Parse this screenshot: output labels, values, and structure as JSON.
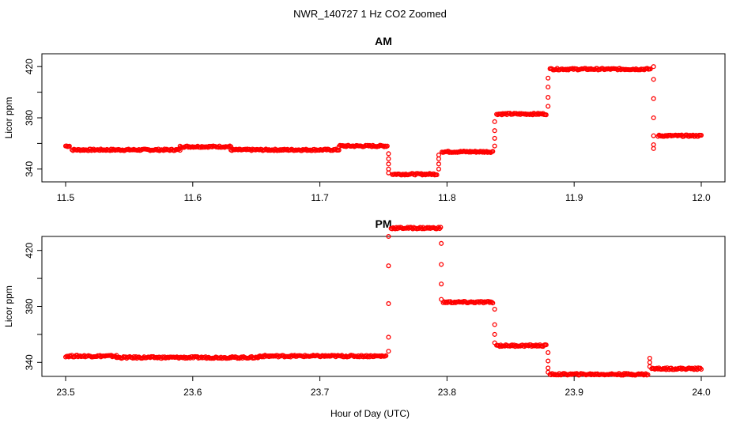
{
  "figure": {
    "title": "NWR_140727  1 Hz CO2 Zoomed",
    "xlabel": "Hour of Day (UTC)"
  },
  "chart_data": [
    {
      "type": "scatter",
      "title": "AM",
      "ylabel": "Licor ppm",
      "xlim": [
        11.5,
        12.0
      ],
      "ylim": [
        330,
        430
      ],
      "x_ticks": [
        "11.5",
        "11.6",
        "11.7",
        "11.8",
        "11.9",
        "12.0"
      ],
      "y_ticks": [
        "340",
        "380",
        "420"
      ],
      "marker_color": "#ff0000",
      "series": [
        {
          "segments": [
            {
              "x": [
                11.5,
                11.503
              ],
              "y": [
                358,
                358
              ]
            },
            {
              "x": [
                11.505,
                11.59
              ],
              "y": [
                355,
                355
              ]
            },
            {
              "x": [
                11.59,
                11.63
              ],
              "y": [
                357.5,
                357.5
              ]
            },
            {
              "x": [
                11.63,
                11.715
              ],
              "y": [
                355,
                355
              ]
            },
            {
              "x": [
                11.715,
                11.753
              ],
              "y": [
                358,
                358
              ]
            },
            {
              "x": [
                11.757,
                11.792
              ],
              "y": [
                336,
                336
              ]
            },
            {
              "x": [
                11.796,
                11.836
              ],
              "y": [
                353.5,
                353.5
              ]
            },
            {
              "x": [
                11.839,
                11.878
              ],
              "y": [
                383,
                383
              ]
            },
            {
              "x": [
                11.881,
                11.96
              ],
              "y": [
                418,
                418
              ]
            },
            {
              "x": [
                11.966,
                12.0
              ],
              "y": [
                366,
                366
              ]
            }
          ],
          "transitions": [
            {
              "x": 11.754,
              "y": [
                352,
                348,
                344,
                340,
                337
              ]
            },
            {
              "x": 11.7935,
              "y": [
                340,
                344,
                348,
                351
              ]
            },
            {
              "x": 11.8375,
              "y": [
                358,
                364,
                370,
                377
              ]
            },
            {
              "x": 11.8795,
              "y": [
                389,
                396,
                404,
                411
              ]
            },
            {
              "x": 11.9625,
              "y": [
                420,
                410,
                395,
                380,
                366,
                359,
                356
              ]
            }
          ]
        }
      ]
    },
    {
      "type": "scatter",
      "title": "PM",
      "ylabel": "Licor ppm",
      "xlim": [
        23.5,
        24.0
      ],
      "ylim": [
        330,
        430
      ],
      "x_ticks": [
        "23.5",
        "23.6",
        "23.7",
        "23.8",
        "23.9",
        "24.0"
      ],
      "y_ticks": [
        "340",
        "380",
        "420"
      ],
      "marker_color": "#ff0000",
      "series": [
        {
          "segments": [
            {
              "x": [
                23.5,
                23.54
              ],
              "y": [
                344.5,
                344.5
              ]
            },
            {
              "x": [
                23.54,
                23.652
              ],
              "y": [
                343.5,
                343.5
              ]
            },
            {
              "x": [
                23.652,
                23.752
              ],
              "y": [
                344.5,
                344.5
              ]
            },
            {
              "x": [
                23.756,
                23.795
              ],
              "y": [
                436,
                436
              ]
            },
            {
              "x": [
                23.797,
                23.836
              ],
              "y": [
                383,
                383
              ]
            },
            {
              "x": [
                23.839,
                23.878
              ],
              "y": [
                352,
                352
              ]
            },
            {
              "x": [
                23.881,
                23.958
              ],
              "y": [
                331.5,
                331.5
              ]
            },
            {
              "x": [
                23.961,
                24.0
              ],
              "y": [
                335.5,
                335.5
              ]
            }
          ],
          "transitions": [
            {
              "x": 23.754,
              "y": [
                348,
                358,
                382,
                409,
                430
              ]
            },
            {
              "x": 23.7955,
              "y": [
                425,
                410,
                396,
                385
              ]
            },
            {
              "x": 23.8375,
              "y": [
                378,
                367,
                360,
                354
              ]
            },
            {
              "x": 23.8795,
              "y": [
                347,
                341,
                336,
                333
              ]
            },
            {
              "x": 23.9595,
              "y": [
                343,
                340,
                337
              ]
            }
          ]
        }
      ]
    }
  ]
}
